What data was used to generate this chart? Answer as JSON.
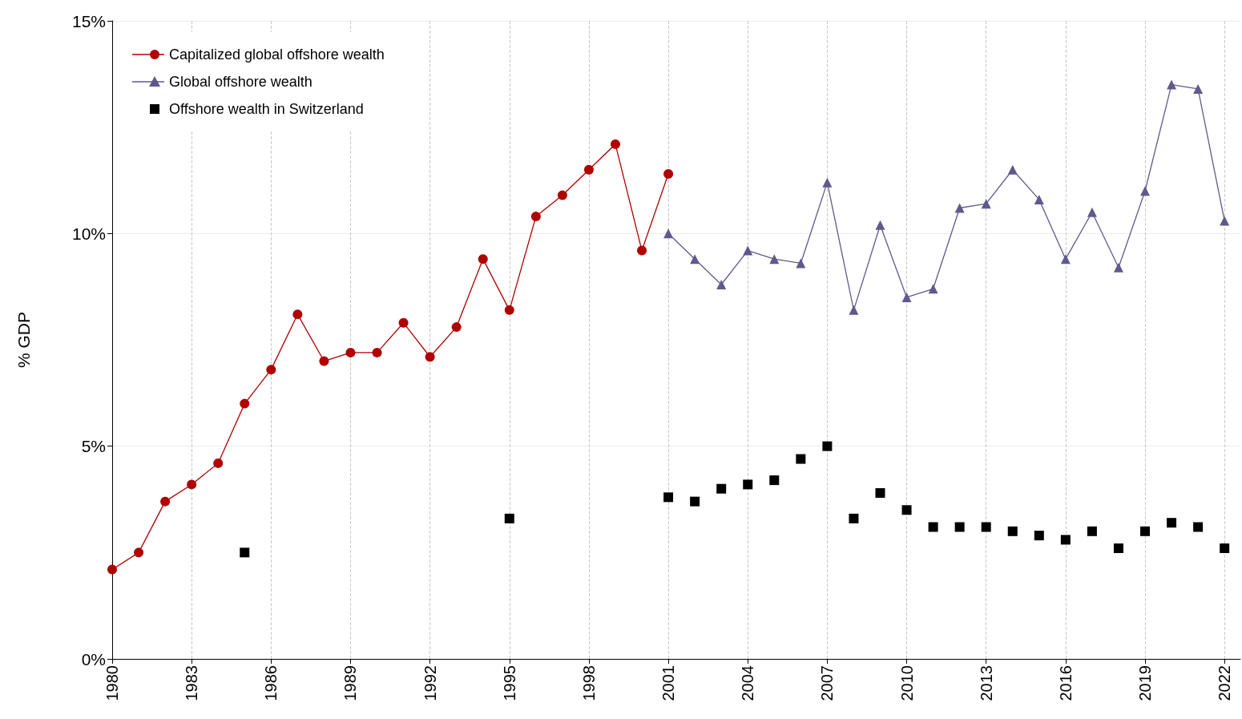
{
  "chart_data": {
    "type": "line",
    "ylabel": "% GDP",
    "x": [
      1980,
      1981,
      1982,
      1983,
      1984,
      1985,
      1986,
      1987,
      1988,
      1989,
      1990,
      1991,
      1992,
      1993,
      1994,
      1995,
      1996,
      1997,
      1998,
      1999,
      2000,
      2001,
      2002,
      2003,
      2004,
      2005,
      2006,
      2007,
      2008,
      2009,
      2010,
      2011,
      2012,
      2013,
      2014,
      2015,
      2016,
      2017,
      2018,
      2019,
      2020,
      2021,
      2022
    ],
    "series": [
      {
        "name": "Capitalized global offshore wealth",
        "color": "#b00000",
        "marker": "circle",
        "values": [
          2.1,
          2.5,
          3.7,
          4.1,
          4.6,
          6.0,
          6.8,
          8.1,
          7.0,
          7.2,
          7.2,
          7.9,
          7.1,
          7.8,
          9.4,
          8.2,
          10.4,
          10.9,
          11.5,
          12.1,
          9.6,
          11.4,
          null,
          null,
          null,
          null,
          null,
          null,
          null,
          null,
          null,
          null,
          null,
          null,
          null,
          null,
          null,
          null,
          null,
          null,
          null,
          null,
          null
        ]
      },
      {
        "name": "Global offshore wealth",
        "color": "#5f5a8c",
        "marker": "triangle",
        "values": [
          null,
          null,
          null,
          null,
          null,
          null,
          null,
          null,
          null,
          null,
          null,
          null,
          null,
          null,
          null,
          null,
          null,
          null,
          null,
          null,
          null,
          10.0,
          9.4,
          8.8,
          9.6,
          9.4,
          9.3,
          11.2,
          8.2,
          10.2,
          8.5,
          8.7,
          10.6,
          10.7,
          11.5,
          10.8,
          9.4,
          10.5,
          9.2,
          11.0,
          13.5,
          13.4,
          10.3
        ]
      },
      {
        "name": "Offshore wealth in Switzerland",
        "type": "scatter",
        "color": "#000000",
        "marker": "square",
        "values": [
          null,
          null,
          null,
          null,
          null,
          2.5,
          null,
          null,
          null,
          null,
          null,
          null,
          null,
          null,
          null,
          3.3,
          null,
          null,
          null,
          null,
          null,
          3.8,
          3.7,
          4.0,
          4.1,
          4.2,
          4.7,
          5.0,
          3.3,
          3.9,
          3.5,
          3.1,
          3.1,
          3.1,
          3.0,
          2.9,
          2.8,
          3.0,
          2.6,
          3.0,
          3.2,
          3.1,
          2.6
        ]
      }
    ],
    "xlim": [
      1980,
      2022.6
    ],
    "xticks": [
      1980,
      1983,
      1986,
      1989,
      1992,
      1995,
      1998,
      2001,
      2004,
      2007,
      2010,
      2013,
      2016,
      2019,
      2022
    ],
    "ylim": [
      0,
      15
    ],
    "yticks": [
      {
        "value": 0,
        "label": "0%"
      },
      {
        "value": 5,
        "label": "5%"
      },
      {
        "value": 10,
        "label": "10%"
      },
      {
        "value": 15,
        "label": "15%"
      }
    ],
    "grid": true,
    "legend": "top left",
    "line_style": "solid"
  }
}
